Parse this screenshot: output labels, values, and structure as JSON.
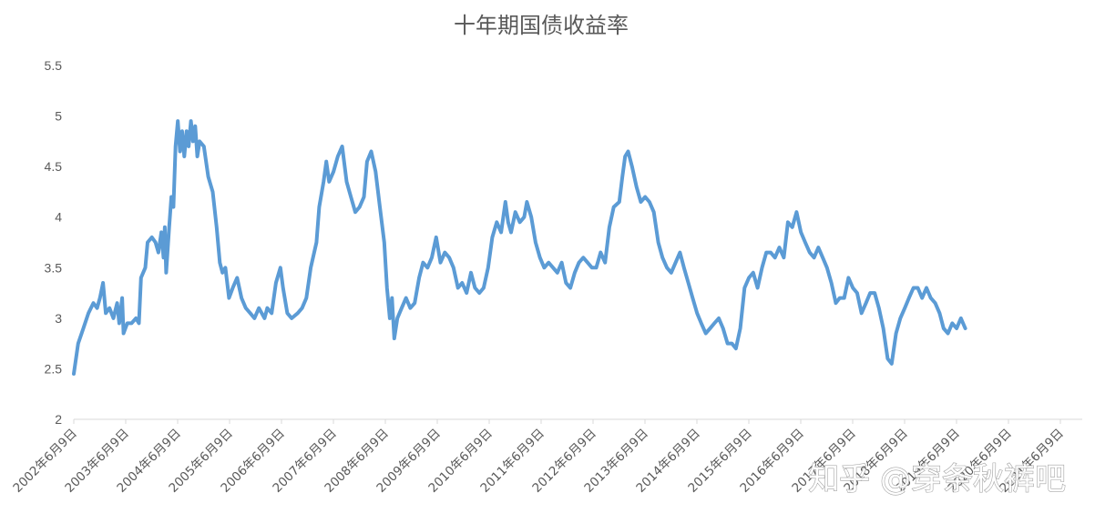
{
  "watermark": "知乎 @穿条秋裤吧",
  "chart_data": {
    "type": "line",
    "title": "十年期国债收益率",
    "xlabel": "",
    "ylabel": "",
    "ylim": [
      2,
      5.5
    ],
    "yticks": [
      "2",
      "2.5",
      "3",
      "3.5",
      "4",
      "4.5",
      "5",
      "5.5"
    ],
    "grid": false,
    "legend": "none",
    "color": "#5B9BD5",
    "x_ticks": [
      "2002年6月9日",
      "2003年6月9日",
      "2004年6月9日",
      "2005年6月9日",
      "2006年6月9日",
      "2007年6月9日",
      "2008年6月9日",
      "2009年6月9日",
      "2010年6月9日",
      "2011年6月9日",
      "2012年6月9日",
      "2013年6月9日",
      "2014年6月9日",
      "2015年6月9日",
      "2016年6月9日",
      "2017年6月9日",
      "2018年6月9日",
      "2019年6月9日",
      "2020年6月9日",
      "2021年6月9日"
    ],
    "x_start": "2002-06-09",
    "x_end": "2021-09-30",
    "series": [
      {
        "points": [
          [
            "2002-06-09",
            2.45
          ],
          [
            "2002-07-10",
            2.75
          ],
          [
            "2002-08-15",
            2.9
          ],
          [
            "2002-09-20",
            3.05
          ],
          [
            "2002-10-25",
            3.15
          ],
          [
            "2002-11-20",
            3.1
          ],
          [
            "2002-12-10",
            3.2
          ],
          [
            "2003-01-01",
            3.35
          ],
          [
            "2003-01-20",
            3.05
          ],
          [
            "2003-02-15",
            3.1
          ],
          [
            "2003-03-15",
            3.0
          ],
          [
            "2003-04-10",
            3.15
          ],
          [
            "2003-04-25",
            2.95
          ],
          [
            "2003-05-15",
            3.2
          ],
          [
            "2003-05-25",
            2.85
          ],
          [
            "2003-06-20",
            2.95
          ],
          [
            "2003-07-20",
            2.95
          ],
          [
            "2003-08-20",
            3.0
          ],
          [
            "2003-09-10",
            2.95
          ],
          [
            "2003-09-25",
            3.4
          ],
          [
            "2003-10-25",
            3.5
          ],
          [
            "2003-11-10",
            3.75
          ],
          [
            "2003-12-10",
            3.8
          ],
          [
            "2004-01-05",
            3.75
          ],
          [
            "2004-01-25",
            3.65
          ],
          [
            "2004-02-15",
            3.85
          ],
          [
            "2004-03-01",
            3.6
          ],
          [
            "2004-03-10",
            3.9
          ],
          [
            "2004-03-20",
            3.45
          ],
          [
            "2004-04-10",
            3.9
          ],
          [
            "2004-04-25",
            4.2
          ],
          [
            "2004-05-10",
            4.1
          ],
          [
            "2004-05-25",
            4.7
          ],
          [
            "2004-06-10",
            4.95
          ],
          [
            "2004-06-25",
            4.65
          ],
          [
            "2004-07-10",
            4.85
          ],
          [
            "2004-07-25",
            4.6
          ],
          [
            "2004-08-10",
            4.85
          ],
          [
            "2004-08-25",
            4.7
          ],
          [
            "2004-09-10",
            4.95
          ],
          [
            "2004-09-25",
            4.75
          ],
          [
            "2004-10-10",
            4.9
          ],
          [
            "2004-10-25",
            4.6
          ],
          [
            "2004-11-10",
            4.75
          ],
          [
            "2004-12-10",
            4.7
          ],
          [
            "2005-01-10",
            4.4
          ],
          [
            "2005-02-10",
            4.25
          ],
          [
            "2005-03-10",
            3.9
          ],
          [
            "2005-04-01",
            3.55
          ],
          [
            "2005-04-20",
            3.45
          ],
          [
            "2005-05-10",
            3.5
          ],
          [
            "2005-06-05",
            3.2
          ],
          [
            "2005-07-01",
            3.3
          ],
          [
            "2005-08-01",
            3.4
          ],
          [
            "2005-09-01",
            3.2
          ],
          [
            "2005-10-01",
            3.1
          ],
          [
            "2005-11-01",
            3.05
          ],
          [
            "2005-12-01",
            3.0
          ],
          [
            "2006-01-01",
            3.1
          ],
          [
            "2006-02-10",
            3.0
          ],
          [
            "2006-03-01",
            3.1
          ],
          [
            "2006-04-01",
            3.05
          ],
          [
            "2006-05-01",
            3.35
          ],
          [
            "2006-06-01",
            3.5
          ],
          [
            "2006-06-20",
            3.3
          ],
          [
            "2006-07-20",
            3.05
          ],
          [
            "2006-08-20",
            3.0
          ],
          [
            "2006-10-01",
            3.05
          ],
          [
            "2006-11-01",
            3.1
          ],
          [
            "2006-12-01",
            3.2
          ],
          [
            "2007-01-01",
            3.5
          ],
          [
            "2007-02-10",
            3.75
          ],
          [
            "2007-03-01",
            4.1
          ],
          [
            "2007-04-01",
            4.35
          ],
          [
            "2007-04-20",
            4.55
          ],
          [
            "2007-05-10",
            4.35
          ],
          [
            "2007-06-10",
            4.45
          ],
          [
            "2007-07-10",
            4.6
          ],
          [
            "2007-08-10",
            4.7
          ],
          [
            "2007-09-10",
            4.35
          ],
          [
            "2007-10-10",
            4.2
          ],
          [
            "2007-11-10",
            4.05
          ],
          [
            "2007-12-10",
            4.1
          ],
          [
            "2008-01-10",
            4.2
          ],
          [
            "2008-02-01",
            4.55
          ],
          [
            "2008-03-01",
            4.65
          ],
          [
            "2008-04-01",
            4.45
          ],
          [
            "2008-05-01",
            4.1
          ],
          [
            "2008-06-01",
            3.75
          ],
          [
            "2008-06-20",
            3.3
          ],
          [
            "2008-07-10",
            3.0
          ],
          [
            "2008-07-25",
            3.2
          ],
          [
            "2008-08-10",
            2.8
          ],
          [
            "2008-09-01",
            3.0
          ],
          [
            "2008-10-01",
            3.1
          ],
          [
            "2008-11-01",
            3.2
          ],
          [
            "2008-12-01",
            3.1
          ],
          [
            "2009-01-01",
            3.15
          ],
          [
            "2009-02-01",
            3.4
          ],
          [
            "2009-03-01",
            3.55
          ],
          [
            "2009-04-01",
            3.5
          ],
          [
            "2009-05-01",
            3.6
          ],
          [
            "2009-06-01",
            3.8
          ],
          [
            "2009-07-01",
            3.55
          ],
          [
            "2009-08-01",
            3.65
          ],
          [
            "2009-09-01",
            3.6
          ],
          [
            "2009-10-01",
            3.5
          ],
          [
            "2009-11-01",
            3.3
          ],
          [
            "2009-12-01",
            3.35
          ],
          [
            "2010-01-01",
            3.25
          ],
          [
            "2010-02-01",
            3.45
          ],
          [
            "2010-03-01",
            3.3
          ],
          [
            "2010-04-01",
            3.25
          ],
          [
            "2010-05-01",
            3.3
          ],
          [
            "2010-06-01",
            3.5
          ],
          [
            "2010-07-01",
            3.8
          ],
          [
            "2010-08-01",
            3.95
          ],
          [
            "2010-09-01",
            3.85
          ],
          [
            "2010-10-01",
            4.15
          ],
          [
            "2010-10-20",
            3.95
          ],
          [
            "2010-11-10",
            3.85
          ],
          [
            "2010-12-10",
            4.05
          ],
          [
            "2011-01-10",
            3.95
          ],
          [
            "2011-02-10",
            4.0
          ],
          [
            "2011-03-01",
            4.15
          ],
          [
            "2011-04-01",
            4.0
          ],
          [
            "2011-05-01",
            3.75
          ],
          [
            "2011-06-01",
            3.6
          ],
          [
            "2011-07-01",
            3.5
          ],
          [
            "2011-08-01",
            3.55
          ],
          [
            "2011-09-01",
            3.5
          ],
          [
            "2011-10-01",
            3.45
          ],
          [
            "2011-11-01",
            3.55
          ],
          [
            "2011-12-01",
            3.35
          ],
          [
            "2012-01-01",
            3.3
          ],
          [
            "2012-02-01",
            3.45
          ],
          [
            "2012-03-01",
            3.55
          ],
          [
            "2012-04-01",
            3.6
          ],
          [
            "2012-05-01",
            3.55
          ],
          [
            "2012-06-01",
            3.5
          ],
          [
            "2012-07-01",
            3.5
          ],
          [
            "2012-08-01",
            3.65
          ],
          [
            "2012-09-01",
            3.55
          ],
          [
            "2012-10-01",
            3.9
          ],
          [
            "2012-11-01",
            4.1
          ],
          [
            "2012-12-10",
            4.15
          ],
          [
            "2013-01-01",
            4.4
          ],
          [
            "2013-01-20",
            4.6
          ],
          [
            "2013-02-10",
            4.65
          ],
          [
            "2013-03-10",
            4.5
          ],
          [
            "2013-04-10",
            4.3
          ],
          [
            "2013-05-10",
            4.15
          ],
          [
            "2013-06-10",
            4.2
          ],
          [
            "2013-07-10",
            4.15
          ],
          [
            "2013-08-10",
            4.05
          ],
          [
            "2013-09-10",
            3.75
          ],
          [
            "2013-10-10",
            3.6
          ],
          [
            "2013-11-10",
            3.5
          ],
          [
            "2013-12-10",
            3.45
          ],
          [
            "2014-01-10",
            3.55
          ],
          [
            "2014-02-10",
            3.65
          ],
          [
            "2014-03-10",
            3.5
          ],
          [
            "2014-04-10",
            3.35
          ],
          [
            "2014-05-10",
            3.2
          ],
          [
            "2014-06-10",
            3.05
          ],
          [
            "2014-07-10",
            2.95
          ],
          [
            "2014-08-10",
            2.85
          ],
          [
            "2014-09-10",
            2.9
          ],
          [
            "2014-10-10",
            2.95
          ],
          [
            "2014-11-10",
            3.0
          ],
          [
            "2014-12-10",
            2.9
          ],
          [
            "2015-01-10",
            2.75
          ],
          [
            "2015-02-10",
            2.75
          ],
          [
            "2015-03-10",
            2.7
          ],
          [
            "2015-04-10",
            2.9
          ],
          [
            "2015-05-10",
            3.3
          ],
          [
            "2015-06-10",
            3.4
          ],
          [
            "2015-07-10",
            3.45
          ],
          [
            "2015-08-10",
            3.3
          ],
          [
            "2015-09-10",
            3.5
          ],
          [
            "2015-10-10",
            3.65
          ],
          [
            "2015-11-10",
            3.65
          ],
          [
            "2015-12-10",
            3.6
          ],
          [
            "2016-01-10",
            3.7
          ],
          [
            "2016-02-10",
            3.6
          ],
          [
            "2016-03-10",
            3.95
          ],
          [
            "2016-04-10",
            3.9
          ],
          [
            "2016-05-10",
            4.05
          ],
          [
            "2016-06-10",
            3.85
          ],
          [
            "2016-07-10",
            3.75
          ],
          [
            "2016-08-10",
            3.65
          ],
          [
            "2016-09-10",
            3.6
          ],
          [
            "2016-10-10",
            3.7
          ],
          [
            "2016-11-10",
            3.6
          ],
          [
            "2016-12-10",
            3.5
          ],
          [
            "2017-01-10",
            3.35
          ],
          [
            "2017-02-10",
            3.15
          ],
          [
            "2017-03-10",
            3.2
          ],
          [
            "2017-04-10",
            3.2
          ],
          [
            "2017-05-10",
            3.4
          ],
          [
            "2017-06-10",
            3.3
          ],
          [
            "2017-07-10",
            3.25
          ],
          [
            "2017-08-10",
            3.05
          ],
          [
            "2017-09-10",
            3.15
          ],
          [
            "2017-10-10",
            3.25
          ],
          [
            "2017-11-10",
            3.25
          ],
          [
            "2017-12-10",
            3.1
          ],
          [
            "2018-01-10",
            2.9
          ],
          [
            "2018-02-10",
            2.6
          ],
          [
            "2018-03-10",
            2.55
          ],
          [
            "2018-04-10",
            2.85
          ],
          [
            "2018-05-10",
            3.0
          ],
          [
            "2018-06-10",
            3.1
          ],
          [
            "2018-07-10",
            3.2
          ],
          [
            "2018-08-10",
            3.3
          ],
          [
            "2018-09-10",
            3.3
          ],
          [
            "2018-10-10",
            3.2
          ],
          [
            "2018-11-10",
            3.3
          ],
          [
            "2018-12-10",
            3.2
          ],
          [
            "2019-01-10",
            3.15
          ],
          [
            "2019-02-10",
            3.05
          ],
          [
            "2019-03-10",
            2.9
          ],
          [
            "2019-04-10",
            2.85
          ],
          [
            "2019-05-10",
            2.95
          ],
          [
            "2019-06-10",
            2.9
          ],
          [
            "2019-07-10",
            3.0
          ],
          [
            "2019-08-10",
            2.9
          ]
        ]
      }
    ]
  }
}
